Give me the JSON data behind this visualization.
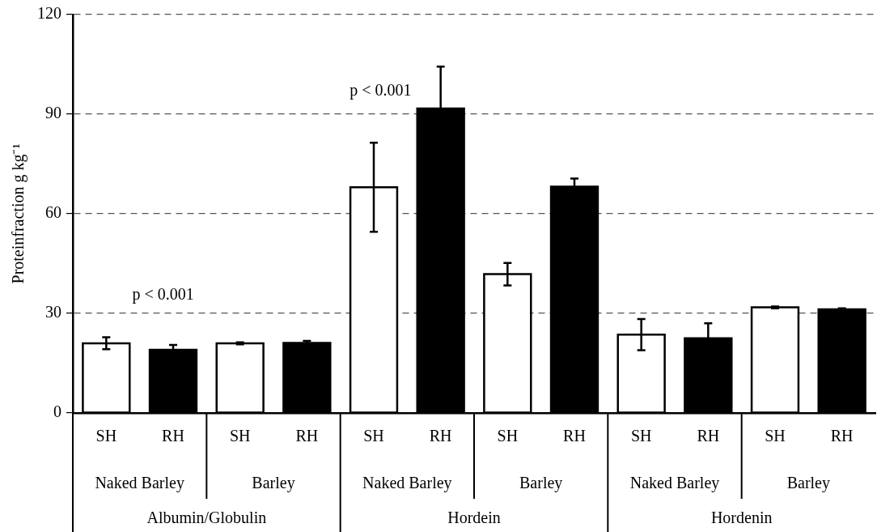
{
  "chart_data": {
    "type": "bar",
    "ylabel": "Proteinfraction g kg⁻¹",
    "categories": [
      "SH",
      "RH",
      "SH",
      "RH",
      "SH",
      "RH",
      "SH",
      "RH",
      "SH",
      "RH",
      "SH",
      "RH"
    ],
    "values": [
      21,
      19,
      21,
      21.1,
      68,
      91.7,
      41.8,
      68.2,
      23.6,
      22.5,
      31.8,
      31.2
    ],
    "errors": [
      1.8,
      1.5,
      0.3,
      0.6,
      13.4,
      12.6,
      3.4,
      2.4,
      4.7,
      4.5,
      0.3,
      0.3
    ],
    "colors": [
      "#ffffff",
      "#000000",
      "#ffffff",
      "#000000",
      "#ffffff",
      "#000000",
      "#ffffff",
      "#000000",
      "#ffffff",
      "#000000",
      "#ffffff",
      "#000000"
    ],
    "ylim": [
      0,
      120
    ],
    "yticks": [
      0,
      30,
      60,
      90,
      120
    ],
    "grid": "y",
    "annotations": [
      "p < 0.001",
      "p < 0.001",
      "Naked Barley",
      "Barley",
      "Naked Barley",
      "Barley",
      "Naked Barley",
      "Barley",
      "Albumin/Globulin",
      "Hordein",
      "Hordenin"
    ]
  }
}
